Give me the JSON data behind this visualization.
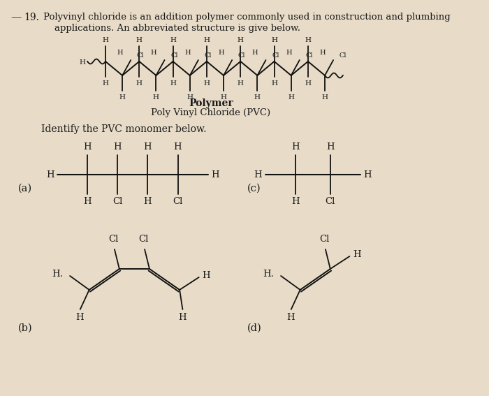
{
  "bg_color": "#e8dcc8",
  "text_color": "#1a1a1a",
  "polymer_label": "Polymer",
  "polymer_sublabel": "Poly Vinyl Chloride (PVC)",
  "identify_text": "Identify the PVC monomer below.",
  "label_a": "(a)",
  "label_b": "(b)",
  "label_c": "(c)",
  "label_d": "(d)"
}
